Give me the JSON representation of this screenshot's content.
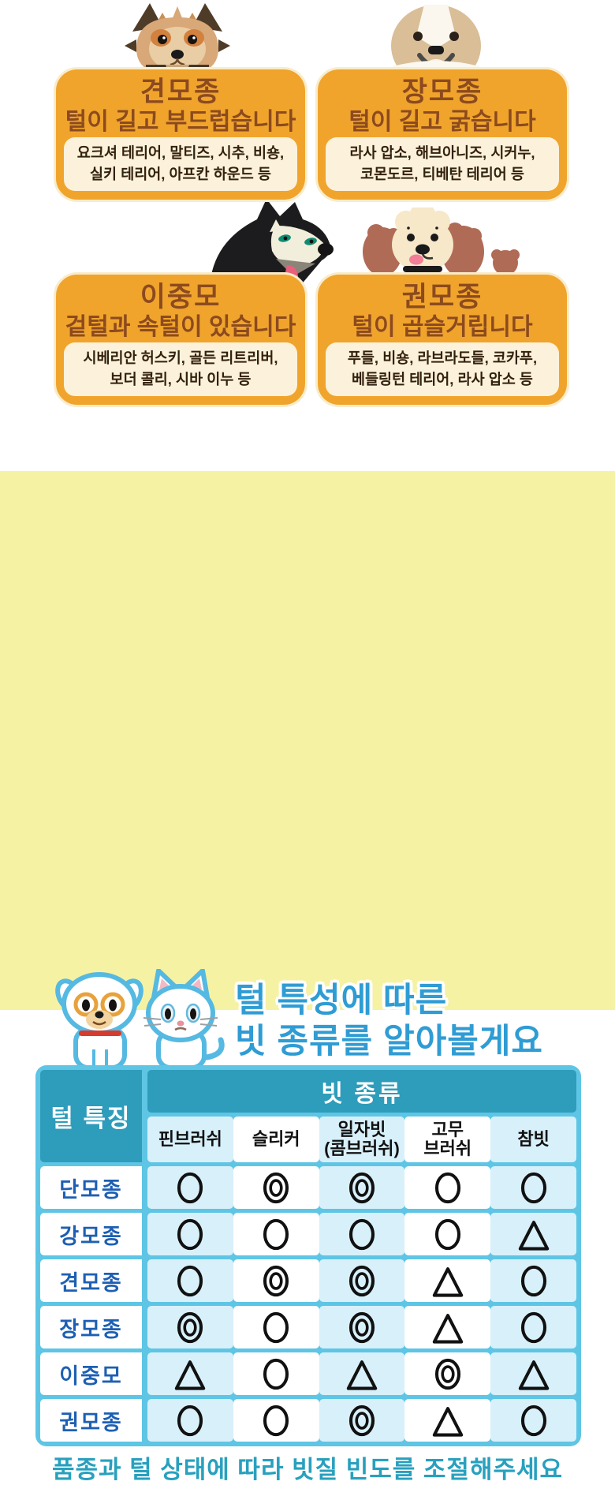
{
  "cards": [
    {
      "title": "견모종",
      "subtitle": "털이 길고 부드럽습니다",
      "breeds": "요크셔 테리어, 말티즈, 시추, 비숑,\n실키 테리어, 아프칸 하운드 등",
      "illustration": "yorkshire-terrier"
    },
    {
      "title": "장모종",
      "subtitle": "털이 길고 굵습니다",
      "breeds": "라사 압소, 해브아니즈, 시커누,\n코몬도르, 티베탄 테리어 등",
      "illustration": "shih-tzu"
    },
    {
      "title": "이중모",
      "subtitle": "겉털과 속털이 있습니다",
      "breeds": "시베리안 허스키, 골든 리트리버,\n보더 콜리, 시바 이누 등",
      "illustration": "siberian-husky"
    },
    {
      "title": "권모종",
      "subtitle": "털이 곱슬거립니다",
      "breeds": "푸들, 비숑, 라브라도들, 코카푸,\n베들링턴 테리어, 라사 압소 등",
      "illustration": "poodle"
    }
  ],
  "section2": {
    "heading": "털 특성에 따른\n빗 종류를 알아볼게요",
    "footer": "품종과 털 상태에 따라 빗질 빈도를 조절해주세요"
  },
  "table": {
    "corner_header": "털 특징",
    "group_header": "빗 종류",
    "columns": [
      "핀브러쉬",
      "슬리커",
      "일자빗\n(콤브러쉬)",
      "고무\n브러쉬",
      "참빗"
    ],
    "rows": [
      {
        "label": "단모종",
        "cells": [
          "circle",
          "double_circle",
          "double_circle",
          "circle",
          "circle"
        ]
      },
      {
        "label": "강모종",
        "cells": [
          "circle",
          "circle",
          "circle",
          "circle",
          "triangle"
        ]
      },
      {
        "label": "견모종",
        "cells": [
          "circle",
          "double_circle",
          "double_circle",
          "triangle",
          "circle"
        ]
      },
      {
        "label": "장모종",
        "cells": [
          "double_circle",
          "circle",
          "double_circle",
          "triangle",
          "circle"
        ]
      },
      {
        "label": "이중모",
        "cells": [
          "triangle",
          "circle",
          "triangle",
          "double_circle",
          "triangle"
        ]
      },
      {
        "label": "권모종",
        "cells": [
          "circle",
          "circle",
          "double_circle",
          "triangle",
          "circle"
        ]
      }
    ],
    "symbol_glyphs": {
      "circle": "○",
      "double_circle": "◎",
      "triangle": "△"
    }
  },
  "colors": {
    "card_orange": "#F0A42C",
    "card_outline": "#F8ECCB",
    "card_text_brown": "#8C4A1E",
    "breed_box_bg": "#FCF2DB",
    "breed_text": "#33210E",
    "yellow_background": "#F6F2A3",
    "heading_blue": "#2F9CD4",
    "table_border_cyan": "#5EC5E5",
    "header_teal": "#2E9CBB",
    "cell_light_blue": "#D8F0FA",
    "row_label_blue": "#1D5FB3",
    "footer_teal": "#28A0BE",
    "symbol_black": "#111111"
  }
}
